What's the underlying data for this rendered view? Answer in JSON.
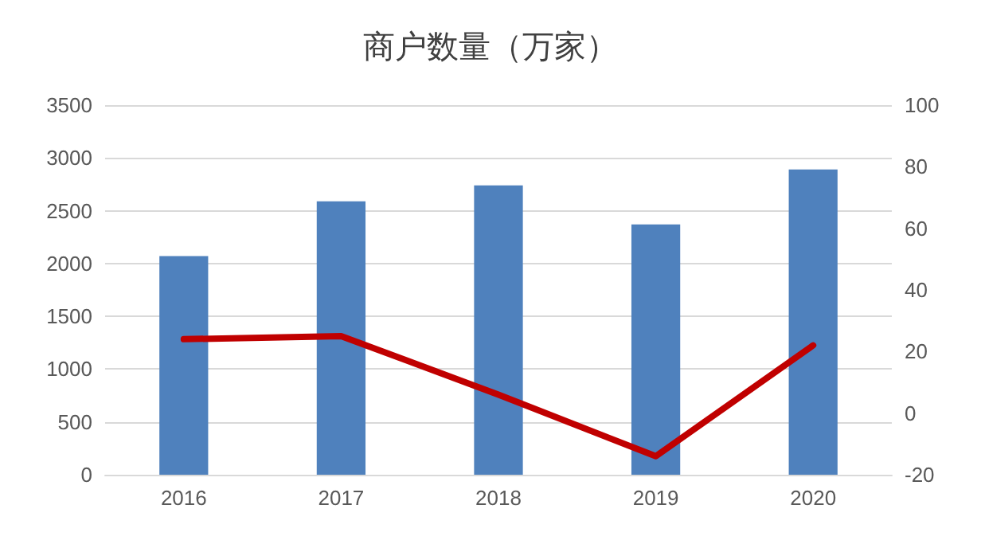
{
  "chart_data": {
    "type": "bar",
    "title": "商户数量（万家）",
    "categories": [
      "2016",
      "2017",
      "2018",
      "2019",
      "2020"
    ],
    "series": [
      {
        "color": "#4f81bd",
        "values": [
          2070,
          2590,
          2740,
          2370,
          2890
        ]
      },
      {
        "type": "line",
        "axis": "y2",
        "color": "#c00000",
        "values": [
          24,
          25,
          6,
          -14,
          22
        ]
      }
    ],
    "ylim": [
      0,
      3500
    ],
    "yticks": [
      0,
      500,
      1000,
      1500,
      2000,
      2500,
      3000,
      3500
    ],
    "y2lim": [
      -20,
      100
    ],
    "y2ticks": [
      -20,
      0,
      20,
      40,
      60,
      80,
      100
    ],
    "grid": "y",
    "marker": "none",
    "line_style": "solid"
  }
}
